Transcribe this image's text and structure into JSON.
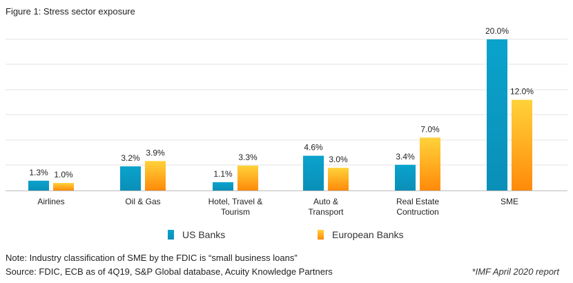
{
  "title": "Figure 1: Stress sector exposure",
  "chart_data": {
    "type": "bar",
    "categories": [
      [
        "Airlines"
      ],
      [
        "Oil & Gas"
      ],
      [
        "Hotel, Travel &",
        "Tourism"
      ],
      [
        "Auto &",
        "Transport"
      ],
      [
        "Real Estate",
        "Contruction"
      ],
      [
        "SME"
      ]
    ],
    "series": [
      {
        "name": "US Banks",
        "values": [
          1.3,
          3.2,
          1.1,
          4.6,
          3.4,
          20.0
        ],
        "labels": [
          "1.3%",
          "3.2%",
          "1.1%",
          "4.6%",
          "3.4%",
          "20.0%"
        ],
        "color": "#0a9fc6"
      },
      {
        "name": "European Banks",
        "values": [
          1.0,
          3.9,
          3.3,
          3.0,
          7.0,
          12.0
        ],
        "labels": [
          "1.0%",
          "3.9%",
          "3.3%",
          "3.0%",
          "7.0%",
          "12.0%"
        ],
        "color": "#ff9a14"
      }
    ],
    "ylim": [
      0,
      20
    ],
    "grid": true,
    "legend_position": "bottom"
  },
  "notes": {
    "line1": "Note: Industry classification of SME by the FDIC is “small business loans”",
    "line2": "Source: FDIC, ECB as of 4Q19, S&P Global database, Acuity Knowledge Partners",
    "report": "*IMF April 2020 report"
  }
}
